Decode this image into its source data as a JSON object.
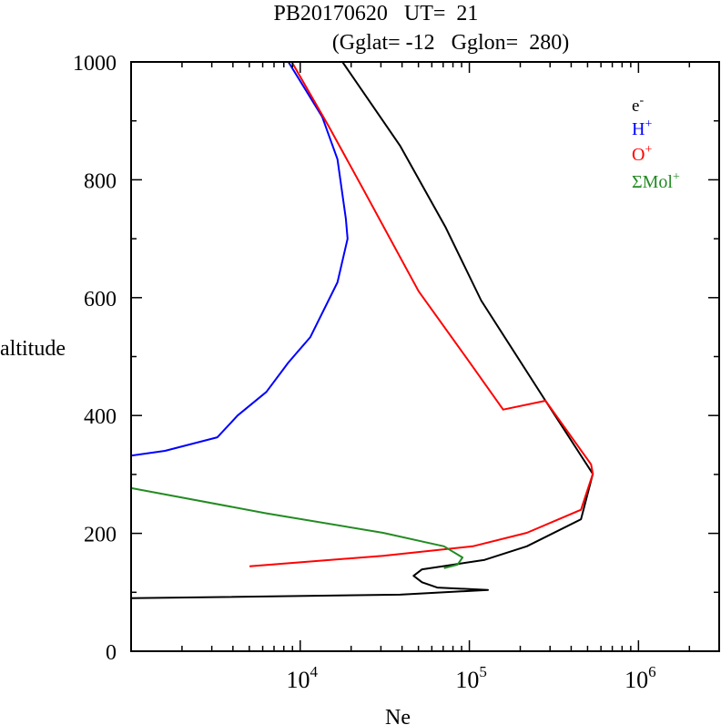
{
  "chart_data": {
    "type": "line",
    "title_line1": "PB20170620   UT=  21",
    "title_line2": "(Gglat= -12   Gglon=  280)",
    "xlabel": "Ne",
    "ylabel": "altitude",
    "xscale": "log",
    "xlim": [
      1000,
      3000000
    ],
    "ylim": [
      0,
      1000
    ],
    "x_tick_labels": [
      {
        "base": "10",
        "exp": "4",
        "value": 10000
      },
      {
        "base": "10",
        "exp": "5",
        "value": 100000
      },
      {
        "base": "10",
        "exp": "6",
        "value": 1000000
      }
    ],
    "y_ticks": [
      0,
      200,
      400,
      600,
      800,
      1000
    ],
    "y_tick_labels": [
      "0",
      "200",
      "400",
      "600",
      "800",
      "1000"
    ],
    "legend_position": "top-right",
    "series": [
      {
        "name": "e-",
        "label_base": "e",
        "label_sup": "-",
        "color": "#000000",
        "points_log10Ne_alt": [
          [
            4.25,
            1000
          ],
          [
            4.59,
            858
          ],
          [
            4.86,
            719
          ],
          [
            5.07,
            595
          ],
          [
            5.45,
            425
          ],
          [
            5.73,
            301
          ],
          [
            5.66,
            224
          ],
          [
            5.34,
            178
          ],
          [
            5.09,
            155
          ],
          [
            4.86,
            145
          ],
          [
            4.72,
            139
          ],
          [
            4.67,
            128
          ],
          [
            4.72,
            117
          ],
          [
            4.81,
            108
          ],
          [
            5.11,
            104
          ],
          [
            4.59,
            96
          ],
          [
            3.0,
            90
          ]
        ]
      },
      {
        "name": "H+",
        "label_base": "H",
        "label_sup": "+",
        "color": "#0000ff",
        "points_log10Ne_alt": [
          [
            3.93,
            1000
          ],
          [
            4.13,
            907
          ],
          [
            4.22,
            835
          ],
          [
            4.27,
            734
          ],
          [
            4.28,
            700
          ],
          [
            4.22,
            626
          ],
          [
            4.06,
            533
          ],
          [
            3.93,
            490
          ],
          [
            3.8,
            440
          ],
          [
            3.63,
            400
          ],
          [
            3.51,
            363
          ],
          [
            3.2,
            340
          ],
          [
            3.0,
            332
          ]
        ]
      },
      {
        "name": "O+",
        "label_base": "O",
        "label_sup": "+",
        "color": "#ff0000",
        "points_log10Ne_alt": [
          [
            3.95,
            1000
          ],
          [
            4.17,
            890
          ],
          [
            4.38,
            780
          ],
          [
            4.7,
            611
          ],
          [
            5.01,
            487
          ],
          [
            5.2,
            410
          ],
          [
            5.45,
            425
          ],
          [
            5.72,
            317
          ],
          [
            5.73,
            301
          ],
          [
            5.66,
            240
          ],
          [
            5.34,
            201
          ],
          [
            5.02,
            178
          ],
          [
            4.49,
            162
          ],
          [
            3.7,
            144
          ]
        ]
      },
      {
        "name": "ΣMol+",
        "label_base": "ΣMol",
        "label_sup": "+",
        "color": "#228b22",
        "points_log10Ne_alt": [
          [
            3.0,
            277
          ],
          [
            3.8,
            234
          ],
          [
            4.49,
            201
          ],
          [
            4.74,
            185
          ],
          [
            4.85,
            178
          ],
          [
            4.96,
            159
          ],
          [
            4.93,
            147
          ],
          [
            4.85,
            141
          ]
        ]
      }
    ]
  }
}
